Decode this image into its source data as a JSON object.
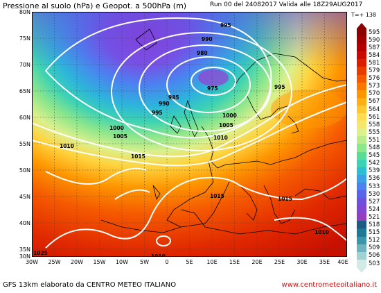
{
  "header": {
    "title": "Pressione al suolo (hPa) e Geopot. a 500hPa (m)",
    "run": "Run 00 del 24082017  Valida alle 18Z29AUG2017",
    "timestep": "T=+ 138"
  },
  "map": {
    "lat_labels": [
      "80N",
      "75N",
      "70N",
      "65N",
      "60N",
      "55N",
      "50N",
      "45N",
      "40N",
      "35N",
      "30N"
    ],
    "lon_labels": [
      "30W",
      "25W",
      "20W",
      "15W",
      "10W",
      "5W",
      "0",
      "5E",
      "10E",
      "15E",
      "20E",
      "25E",
      "30E",
      "35E",
      "40E"
    ],
    "isobars": [
      {
        "label": "995"
      },
      {
        "label": "990"
      },
      {
        "label": "980"
      },
      {
        "label": "975"
      },
      {
        "label": "985"
      },
      {
        "label": "990"
      },
      {
        "label": "995"
      },
      {
        "label": "1000"
      },
      {
        "label": "1005"
      },
      {
        "label": "1010"
      },
      {
        "label": "1015"
      },
      {
        "label": "1000"
      },
      {
        "label": "1005"
      },
      {
        "label": "1010"
      },
      {
        "label": "1015"
      },
      {
        "label": "1015"
      },
      {
        "label": "1010"
      },
      {
        "label": "1010"
      },
      {
        "label": "1025"
      },
      {
        "label": "995"
      }
    ]
  },
  "legend": {
    "values": [
      "595",
      "590",
      "587",
      "584",
      "581",
      "579",
      "576",
      "573",
      "570",
      "567",
      "564",
      "561",
      "558",
      "555",
      "551",
      "548",
      "545",
      "542",
      "539",
      "536",
      "533",
      "530",
      "527",
      "524",
      "521",
      "518",
      "515",
      "512",
      "509",
      "506",
      "503"
    ],
    "colors": [
      "#8b0000",
      "#a00000",
      "#b40000",
      "#c80a00",
      "#dc1e00",
      "#eb3c00",
      "#f55a00",
      "#fa7800",
      "#fd9600",
      "#ffaf14",
      "#ffc832",
      "#ffdc50",
      "#f5e66e",
      "#dcf08c",
      "#b9ec8c",
      "#8ce68c",
      "#5adc96",
      "#3cd2b4",
      "#2dbed2",
      "#3ca0e6",
      "#4b82f0",
      "#5a64eb",
      "#6e50dc",
      "#8246d2",
      "#963cbe",
      "#1e5a82",
      "#1e7896",
      "#3c96aa",
      "#6eb4be",
      "#a0d2d2",
      "#d2ebe6"
    ]
  },
  "footer": {
    "left": "GFS 13km elaborato da CENTRO METEO ITALIANO",
    "right": "www.centrometeoitaliano.it"
  }
}
